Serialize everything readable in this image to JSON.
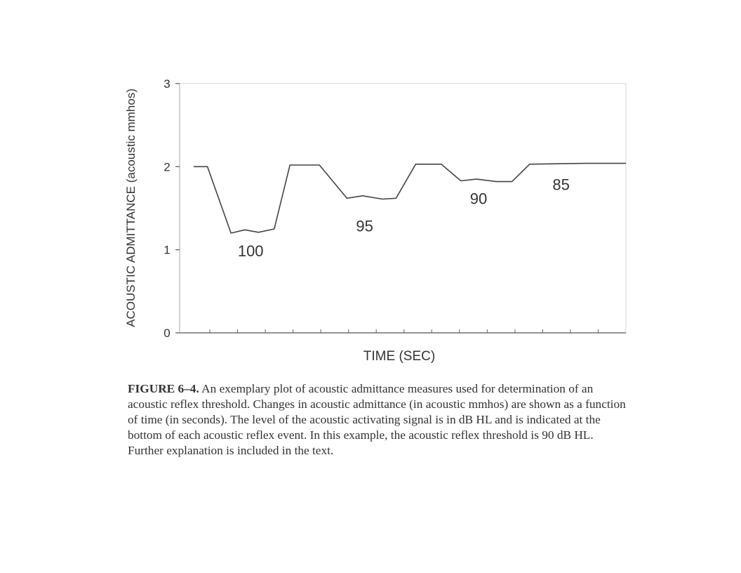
{
  "chart_data": {
    "type": "line",
    "ylabel": "ACOUSTIC ADMITTANCE (acoustic mmhos)",
    "xlabel": "TIME (SEC)",
    "ylim": [
      0,
      3
    ],
    "yticks": [
      "0",
      "1",
      "2",
      "3"
    ],
    "x_tick_count": 15,
    "series": [
      {
        "points": [
          [
            0.0,
            2.0
          ],
          [
            0.35,
            2.0
          ],
          [
            0.95,
            1.2
          ],
          [
            1.3,
            1.24
          ],
          [
            1.65,
            1.21
          ],
          [
            2.05,
            1.25
          ],
          [
            2.45,
            2.02
          ],
          [
            3.2,
            2.02
          ],
          [
            3.9,
            1.62
          ],
          [
            4.3,
            1.65
          ],
          [
            4.8,
            1.61
          ],
          [
            5.15,
            1.62
          ],
          [
            5.65,
            2.03
          ],
          [
            6.3,
            2.03
          ],
          [
            6.8,
            1.83
          ],
          [
            7.2,
            1.85
          ],
          [
            7.7,
            1.82
          ],
          [
            8.1,
            1.82
          ],
          [
            8.55,
            2.03
          ],
          [
            10.0,
            2.04
          ],
          [
            11.0,
            2.04
          ]
        ]
      }
    ],
    "annotations": [
      {
        "text": "100",
        "x": 1.45,
        "y": 0.92
      },
      {
        "text": "95",
        "x": 4.35,
        "y": 1.22
      },
      {
        "text": "90",
        "x": 7.25,
        "y": 1.55
      },
      {
        "text": "85",
        "x": 9.35,
        "y": 1.72
      }
    ]
  },
  "caption": {
    "label": "FIGURE 6–4.",
    "text": " An exemplary plot of acoustic admittance measures used for determination of an acoustic reflex threshold. Changes in acoustic admittance (in acoustic mmhos) are shown as a function of time (in seconds). The level of the acoustic activating signal is in dB HL and is indicated at the bottom of each acoustic reflex event. In this example, the acoustic reflex threshold is 90 dB HL. Further explanation is included in the text."
  }
}
